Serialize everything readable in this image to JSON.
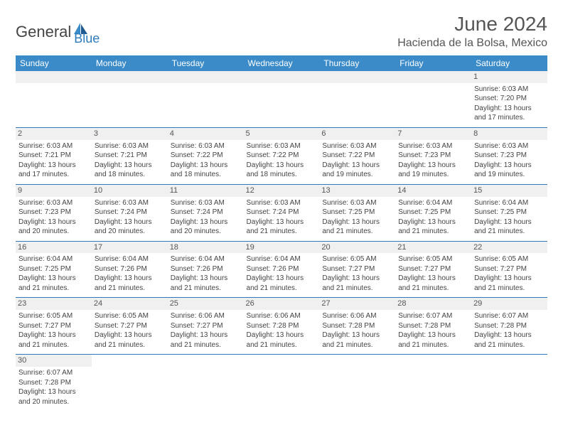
{
  "logo": {
    "text1": "General",
    "text2": "Blue"
  },
  "title": "June 2024",
  "location": "Hacienda de la Bolsa, Mexico",
  "colors": {
    "header_bg": "#3b8bc9",
    "header_text": "#ffffff",
    "border": "#2d7bbd",
    "daynum_bg": "#f0f0f0",
    "text": "#444444",
    "logo_gray": "#444444",
    "logo_blue": "#2d7bbd"
  },
  "day_names": [
    "Sunday",
    "Monday",
    "Tuesday",
    "Wednesday",
    "Thursday",
    "Friday",
    "Saturday"
  ],
  "weeks": [
    [
      null,
      null,
      null,
      null,
      null,
      null,
      {
        "n": "1",
        "sunrise": "6:03 AM",
        "sunset": "7:20 PM",
        "dl1": "Daylight: 13 hours",
        "dl2": "and 17 minutes."
      }
    ],
    [
      {
        "n": "2",
        "sunrise": "6:03 AM",
        "sunset": "7:21 PM",
        "dl1": "Daylight: 13 hours",
        "dl2": "and 17 minutes."
      },
      {
        "n": "3",
        "sunrise": "6:03 AM",
        "sunset": "7:21 PM",
        "dl1": "Daylight: 13 hours",
        "dl2": "and 18 minutes."
      },
      {
        "n": "4",
        "sunrise": "6:03 AM",
        "sunset": "7:22 PM",
        "dl1": "Daylight: 13 hours",
        "dl2": "and 18 minutes."
      },
      {
        "n": "5",
        "sunrise": "6:03 AM",
        "sunset": "7:22 PM",
        "dl1": "Daylight: 13 hours",
        "dl2": "and 18 minutes."
      },
      {
        "n": "6",
        "sunrise": "6:03 AM",
        "sunset": "7:22 PM",
        "dl1": "Daylight: 13 hours",
        "dl2": "and 19 minutes."
      },
      {
        "n": "7",
        "sunrise": "6:03 AM",
        "sunset": "7:23 PM",
        "dl1": "Daylight: 13 hours",
        "dl2": "and 19 minutes."
      },
      {
        "n": "8",
        "sunrise": "6:03 AM",
        "sunset": "7:23 PM",
        "dl1": "Daylight: 13 hours",
        "dl2": "and 19 minutes."
      }
    ],
    [
      {
        "n": "9",
        "sunrise": "6:03 AM",
        "sunset": "7:23 PM",
        "dl1": "Daylight: 13 hours",
        "dl2": "and 20 minutes."
      },
      {
        "n": "10",
        "sunrise": "6:03 AM",
        "sunset": "7:24 PM",
        "dl1": "Daylight: 13 hours",
        "dl2": "and 20 minutes."
      },
      {
        "n": "11",
        "sunrise": "6:03 AM",
        "sunset": "7:24 PM",
        "dl1": "Daylight: 13 hours",
        "dl2": "and 20 minutes."
      },
      {
        "n": "12",
        "sunrise": "6:03 AM",
        "sunset": "7:24 PM",
        "dl1": "Daylight: 13 hours",
        "dl2": "and 21 minutes."
      },
      {
        "n": "13",
        "sunrise": "6:03 AM",
        "sunset": "7:25 PM",
        "dl1": "Daylight: 13 hours",
        "dl2": "and 21 minutes."
      },
      {
        "n": "14",
        "sunrise": "6:04 AM",
        "sunset": "7:25 PM",
        "dl1": "Daylight: 13 hours",
        "dl2": "and 21 minutes."
      },
      {
        "n": "15",
        "sunrise": "6:04 AM",
        "sunset": "7:25 PM",
        "dl1": "Daylight: 13 hours",
        "dl2": "and 21 minutes."
      }
    ],
    [
      {
        "n": "16",
        "sunrise": "6:04 AM",
        "sunset": "7:25 PM",
        "dl1": "Daylight: 13 hours",
        "dl2": "and 21 minutes."
      },
      {
        "n": "17",
        "sunrise": "6:04 AM",
        "sunset": "7:26 PM",
        "dl1": "Daylight: 13 hours",
        "dl2": "and 21 minutes."
      },
      {
        "n": "18",
        "sunrise": "6:04 AM",
        "sunset": "7:26 PM",
        "dl1": "Daylight: 13 hours",
        "dl2": "and 21 minutes."
      },
      {
        "n": "19",
        "sunrise": "6:04 AM",
        "sunset": "7:26 PM",
        "dl1": "Daylight: 13 hours",
        "dl2": "and 21 minutes."
      },
      {
        "n": "20",
        "sunrise": "6:05 AM",
        "sunset": "7:27 PM",
        "dl1": "Daylight: 13 hours",
        "dl2": "and 21 minutes."
      },
      {
        "n": "21",
        "sunrise": "6:05 AM",
        "sunset": "7:27 PM",
        "dl1": "Daylight: 13 hours",
        "dl2": "and 21 minutes."
      },
      {
        "n": "22",
        "sunrise": "6:05 AM",
        "sunset": "7:27 PM",
        "dl1": "Daylight: 13 hours",
        "dl2": "and 21 minutes."
      }
    ],
    [
      {
        "n": "23",
        "sunrise": "6:05 AM",
        "sunset": "7:27 PM",
        "dl1": "Daylight: 13 hours",
        "dl2": "and 21 minutes."
      },
      {
        "n": "24",
        "sunrise": "6:05 AM",
        "sunset": "7:27 PM",
        "dl1": "Daylight: 13 hours",
        "dl2": "and 21 minutes."
      },
      {
        "n": "25",
        "sunrise": "6:06 AM",
        "sunset": "7:27 PM",
        "dl1": "Daylight: 13 hours",
        "dl2": "and 21 minutes."
      },
      {
        "n": "26",
        "sunrise": "6:06 AM",
        "sunset": "7:28 PM",
        "dl1": "Daylight: 13 hours",
        "dl2": "and 21 minutes."
      },
      {
        "n": "27",
        "sunrise": "6:06 AM",
        "sunset": "7:28 PM",
        "dl1": "Daylight: 13 hours",
        "dl2": "and 21 minutes."
      },
      {
        "n": "28",
        "sunrise": "6:07 AM",
        "sunset": "7:28 PM",
        "dl1": "Daylight: 13 hours",
        "dl2": "and 21 minutes."
      },
      {
        "n": "29",
        "sunrise": "6:07 AM",
        "sunset": "7:28 PM",
        "dl1": "Daylight: 13 hours",
        "dl2": "and 21 minutes."
      }
    ],
    [
      {
        "n": "30",
        "sunrise": "6:07 AM",
        "sunset": "7:28 PM",
        "dl1": "Daylight: 13 hours",
        "dl2": "and 20 minutes."
      },
      null,
      null,
      null,
      null,
      null,
      null
    ]
  ],
  "labels": {
    "sunrise": "Sunrise: ",
    "sunset": "Sunset: "
  }
}
